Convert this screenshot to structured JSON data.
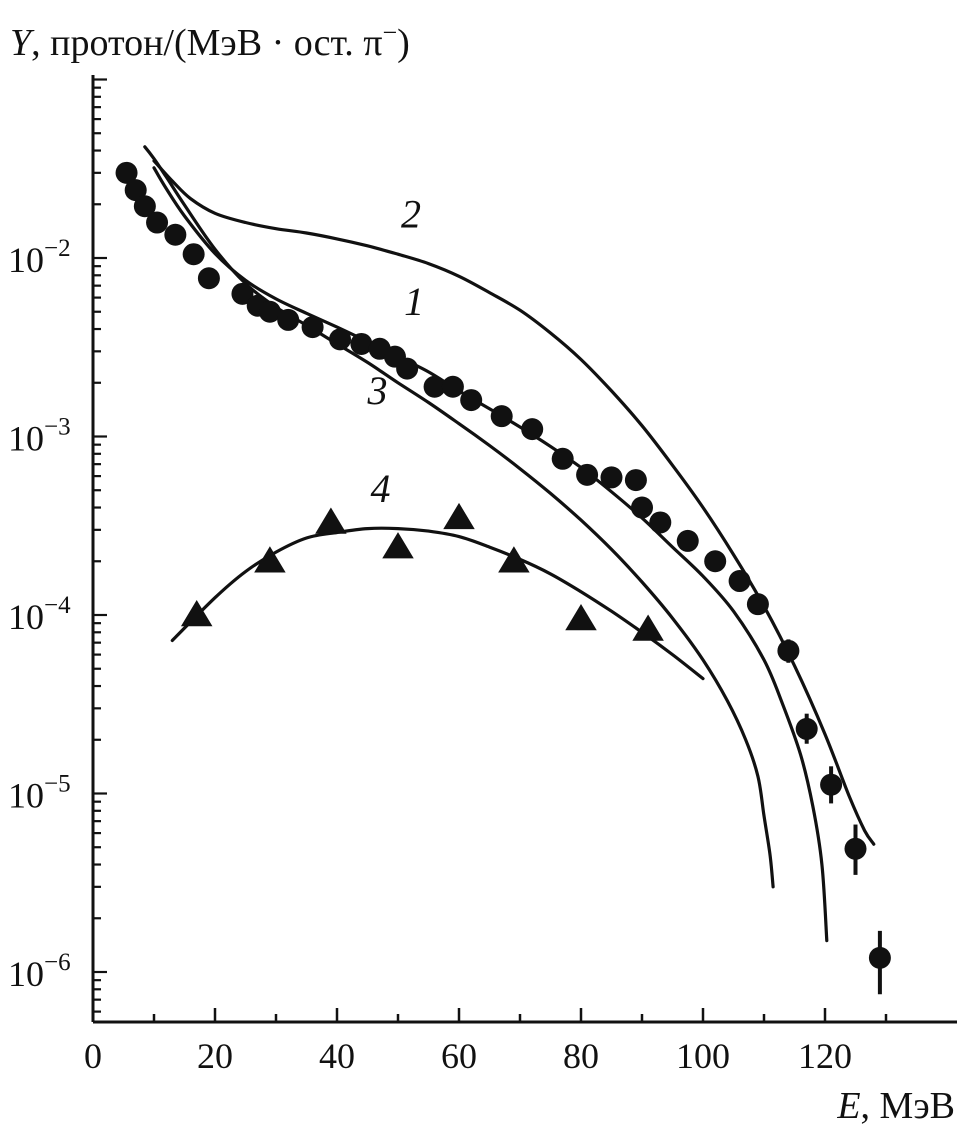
{
  "chart_data": {
    "type": "scatter",
    "ylabel_var": "Y",
    "ylabel_unit": ", протон/(МэВ · ост. π",
    "ylabel_sup": "−",
    "ylabel_close": ")",
    "xlabel_var": "E",
    "xlabel_unit": ", МэВ",
    "x_ticks": [
      "0",
      "20",
      "40",
      "60",
      "80",
      "100",
      "120"
    ],
    "y_ticks": [
      {
        "base": "10",
        "exp": "−2",
        "value": 0.01
      },
      {
        "base": "10",
        "exp": "−3",
        "value": 0.001
      },
      {
        "base": "10",
        "exp": "−4",
        "value": 0.0001
      },
      {
        "base": "10",
        "exp": "−5",
        "value": 1e-05
      },
      {
        "base": "10",
        "exp": "−6",
        "value": 1e-06
      }
    ],
    "xlim": [
      0,
      140
    ],
    "ylim": [
      6e-07,
      0.1
    ],
    "yscale": "log",
    "grid": false,
    "series": [
      {
        "marker": "circle",
        "points": [
          [
            5.5,
            0.03
          ],
          [
            7,
            0.024
          ],
          [
            8.5,
            0.0195
          ],
          [
            10.5,
            0.0158
          ],
          [
            13.5,
            0.0135
          ],
          [
            16.5,
            0.0105
          ],
          [
            19,
            0.0077
          ],
          [
            24.5,
            0.0063
          ],
          [
            27,
            0.0054
          ],
          [
            29,
            0.005
          ],
          [
            32,
            0.0045
          ],
          [
            36,
            0.0041
          ],
          [
            40.5,
            0.0035
          ],
          [
            44,
            0.0033
          ],
          [
            47,
            0.0031
          ],
          [
            49.5,
            0.0028
          ],
          [
            51.5,
            0.0024
          ],
          [
            56,
            0.0019
          ],
          [
            59,
            0.0019
          ],
          [
            62,
            0.0016
          ],
          [
            67,
            0.0013
          ],
          [
            72,
            0.0011
          ],
          [
            77,
            0.00075
          ],
          [
            81,
            0.00061
          ],
          [
            85,
            0.00059
          ],
          [
            89,
            0.00057
          ],
          [
            90,
            0.0004
          ],
          [
            93,
            0.00033
          ],
          [
            97.5,
            0.00026
          ],
          [
            102,
            0.0002
          ],
          [
            106,
            0.000155
          ],
          [
            109,
            0.000115
          ],
          [
            114,
            6.3e-05
          ],
          [
            117,
            2.3e-05
          ],
          [
            121,
            1.12e-05
          ],
          [
            125,
            4.9e-06
          ],
          [
            129,
            1.2e-06
          ]
        ]
      },
      {
        "marker": "triangle",
        "points": [
          [
            17,
            0.0001
          ],
          [
            29,
            0.0002
          ],
          [
            39,
            0.00033
          ],
          [
            50,
            0.00024
          ],
          [
            60,
            0.00035
          ],
          [
            69,
            0.0002
          ],
          [
            80,
            9.5e-05
          ],
          [
            91,
            8.3e-05
          ]
        ]
      }
    ],
    "error_bars": [
      {
        "x": 114,
        "lo": 5.4e-05,
        "hi": 7.3e-05
      },
      {
        "x": 117,
        "lo": 1.9e-05,
        "hi": 2.8e-05
      },
      {
        "x": 121,
        "lo": 8.8e-06,
        "hi": 1.42e-05
      },
      {
        "x": 125,
        "lo": 3.5e-06,
        "hi": 6.7e-06
      },
      {
        "x": 129,
        "lo": 7.5e-07,
        "hi": 1.7e-06
      }
    ],
    "curves": [
      {
        "label": "1",
        "points": [
          [
            10,
            0.032
          ],
          [
            12,
            0.0245
          ],
          [
            15,
            0.0172
          ],
          [
            20,
            0.0106
          ],
          [
            25,
            0.0075
          ],
          [
            30,
            0.0059
          ],
          [
            35,
            0.0049
          ],
          [
            40,
            0.0041
          ],
          [
            45,
            0.0034
          ],
          [
            50,
            0.0028
          ],
          [
            55,
            0.0023
          ],
          [
            60,
            0.0018
          ],
          [
            65,
            0.00143
          ],
          [
            70,
            0.00113
          ],
          [
            75,
            0.00088
          ],
          [
            80,
            0.00067
          ],
          [
            85,
            0.00049
          ],
          [
            90,
            0.00035
          ],
          [
            95,
            0.00024
          ],
          [
            100,
            0.000165
          ],
          [
            105,
            0.000105
          ],
          [
            110,
            5.6e-05
          ],
          [
            113,
            3.2e-05
          ],
          [
            116,
            1.65e-05
          ],
          [
            118,
            8.5e-06
          ],
          [
            119.5,
            4e-06
          ],
          [
            120.3,
            1.5e-06
          ]
        ]
      },
      {
        "label": "2",
        "points": [
          [
            10,
            0.035
          ],
          [
            13,
            0.027
          ],
          [
            16,
            0.0215
          ],
          [
            20,
            0.0178
          ],
          [
            25,
            0.0158
          ],
          [
            30,
            0.0146
          ],
          [
            35,
            0.0138
          ],
          [
            40,
            0.0128
          ],
          [
            45,
            0.0117
          ],
          [
            50,
            0.0105
          ],
          [
            55,
            0.0093
          ],
          [
            60,
            0.0079
          ],
          [
            65,
            0.0064
          ],
          [
            70,
            0.0051
          ],
          [
            75,
            0.0038
          ],
          [
            80,
            0.0027
          ],
          [
            85,
            0.0018
          ],
          [
            90,
            0.00115
          ],
          [
            95,
            0.00069
          ],
          [
            100,
            0.0004
          ],
          [
            105,
            0.000218
          ],
          [
            110,
            0.000112
          ],
          [
            115,
            5.2e-05
          ],
          [
            120,
            2.15e-05
          ],
          [
            124,
            9.6e-06
          ],
          [
            126.5,
            6.2e-06
          ],
          [
            128,
            5.2e-06
          ]
        ]
      },
      {
        "label": "3",
        "points": [
          [
            8.5,
            0.042
          ],
          [
            10,
            0.036
          ],
          [
            12,
            0.0285
          ],
          [
            15,
            0.0198
          ],
          [
            20,
            0.0112
          ],
          [
            25,
            0.0072
          ],
          [
            30,
            0.0053
          ],
          [
            35,
            0.0042
          ],
          [
            40,
            0.0033
          ],
          [
            45,
            0.0026
          ],
          [
            50,
            0.002
          ],
          [
            55,
            0.00155
          ],
          [
            60,
            0.00118
          ],
          [
            65,
            0.00089
          ],
          [
            70,
            0.00066
          ],
          [
            75,
            0.00048
          ],
          [
            80,
            0.00034
          ],
          [
            85,
            0.000233
          ],
          [
            90,
            0.000153
          ],
          [
            95,
            9.6e-05
          ],
          [
            100,
            5.6e-05
          ],
          [
            104,
            3.3e-05
          ],
          [
            107,
            2e-05
          ],
          [
            109,
            1.25e-05
          ],
          [
            110,
            7.5e-06
          ],
          [
            111,
            4.5e-06
          ],
          [
            111.5,
            3e-06
          ]
        ]
      },
      {
        "label": "4",
        "points": [
          [
            13,
            7.2e-05
          ],
          [
            20,
            0.000125
          ],
          [
            25,
            0.000175
          ],
          [
            30,
            0.000225
          ],
          [
            35,
            0.00027
          ],
          [
            40,
            0.00029
          ],
          [
            45,
            0.000305
          ],
          [
            50,
            0.000305
          ],
          [
            55,
            0.000295
          ],
          [
            60,
            0.000275
          ],
          [
            65,
            0.00024
          ],
          [
            70,
            0.000205
          ],
          [
            75,
            0.00017
          ],
          [
            80,
            0.000135
          ],
          [
            85,
            0.000105
          ],
          [
            90,
            8e-05
          ],
          [
            95,
            6e-05
          ],
          [
            100,
            4.4e-05
          ]
        ]
      }
    ],
    "curve_labels": [
      {
        "text": "1",
        "x": 51,
        "y": 0.0048
      },
      {
        "text": "2",
        "x": 50.5,
        "y": 0.0148
      },
      {
        "text": "3",
        "x": 45,
        "y": 0.00152
      },
      {
        "text": "4",
        "x": 45.5,
        "y": 0.00043
      }
    ]
  }
}
